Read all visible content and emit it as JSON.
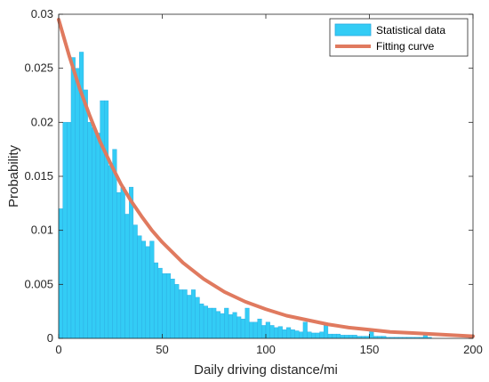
{
  "chart_data": {
    "type": "bar",
    "xlabel": "Daily driving distance/mi",
    "ylabel": "Probability",
    "xlim": [
      0,
      200
    ],
    "ylim": [
      0,
      0.03
    ],
    "xticks": [
      0,
      50,
      100,
      150,
      200
    ],
    "xtick_labels": [
      "0",
      "50",
      "100",
      "150",
      "200"
    ],
    "yticks": [
      0,
      0.005,
      0.01,
      0.015,
      0.02,
      0.025,
      0.03
    ],
    "ytick_labels": [
      "0",
      "0.005",
      "0.01",
      "0.015",
      "0.02",
      "0.025",
      "0.03"
    ],
    "grid": false,
    "legend_position": "top-right",
    "bin_width": 2,
    "series": [
      {
        "name": "Statistical data",
        "kind": "histogram",
        "bin_starts": [
          0,
          2,
          4,
          6,
          8,
          10,
          12,
          14,
          16,
          18,
          20,
          22,
          24,
          26,
          28,
          30,
          32,
          34,
          36,
          38,
          40,
          42,
          44,
          46,
          48,
          50,
          52,
          54,
          56,
          58,
          60,
          62,
          64,
          66,
          68,
          70,
          72,
          74,
          76,
          78,
          80,
          82,
          84,
          86,
          88,
          90,
          92,
          94,
          96,
          98,
          100,
          102,
          104,
          106,
          108,
          110,
          112,
          114,
          116,
          118,
          120,
          122,
          124,
          126,
          128,
          130,
          132,
          134,
          136,
          138,
          140,
          142,
          144,
          146,
          148,
          150,
          152,
          154,
          156,
          158,
          160,
          162,
          164,
          166,
          168,
          170,
          172,
          174,
          176,
          178
        ],
        "values": [
          0.012,
          0.02,
          0.02,
          0.026,
          0.025,
          0.0265,
          0.023,
          0.02,
          0.0195,
          0.019,
          0.022,
          0.022,
          0.016,
          0.0175,
          0.0135,
          0.014,
          0.0115,
          0.014,
          0.0105,
          0.0095,
          0.009,
          0.0085,
          0.009,
          0.007,
          0.0065,
          0.006,
          0.006,
          0.0055,
          0.005,
          0.0045,
          0.0045,
          0.004,
          0.0045,
          0.0038,
          0.0032,
          0.003,
          0.0028,
          0.0028,
          0.0025,
          0.0023,
          0.0028,
          0.0022,
          0.0024,
          0.002,
          0.0018,
          0.0028,
          0.0015,
          0.0015,
          0.0018,
          0.0012,
          0.0015,
          0.0012,
          0.001,
          0.0011,
          0.0008,
          0.001,
          0.0008,
          0.0007,
          0.0006,
          0.0015,
          0.0006,
          0.0005,
          0.0005,
          0.0006,
          0.0012,
          0.0004,
          0.0004,
          0.0004,
          0.0003,
          0.0003,
          0.0003,
          0.0003,
          0.0002,
          0.0002,
          0.0002,
          0.0008,
          0.0002,
          0.0002,
          0.0002,
          0.0001,
          0.0001,
          0.0001,
          0.0001,
          0.0001,
          0.0001,
          0.0001,
          0.0001,
          0.0001,
          0.0005,
          0.0001
        ],
        "color": "#33ccf5",
        "edge_color": "#2aa8e0"
      },
      {
        "name": "Fitting curve",
        "kind": "line",
        "x": [
          0,
          5,
          10,
          15,
          20,
          25,
          30,
          35,
          40,
          45,
          50,
          60,
          70,
          80,
          90,
          100,
          110,
          120,
          130,
          140,
          150,
          160,
          170,
          180,
          190,
          200
        ],
        "y": [
          0.0295,
          0.0262,
          0.0232,
          0.0206,
          0.0182,
          0.0162,
          0.0143,
          0.0127,
          0.0113,
          0.01,
          0.0089,
          0.007,
          0.0055,
          0.0043,
          0.0034,
          0.0027,
          0.0021,
          0.0017,
          0.0013,
          0.001,
          0.0008,
          0.0006,
          0.0005,
          0.0004,
          0.0003,
          0.0002
        ],
        "color": "#e07a5f"
      }
    ]
  }
}
